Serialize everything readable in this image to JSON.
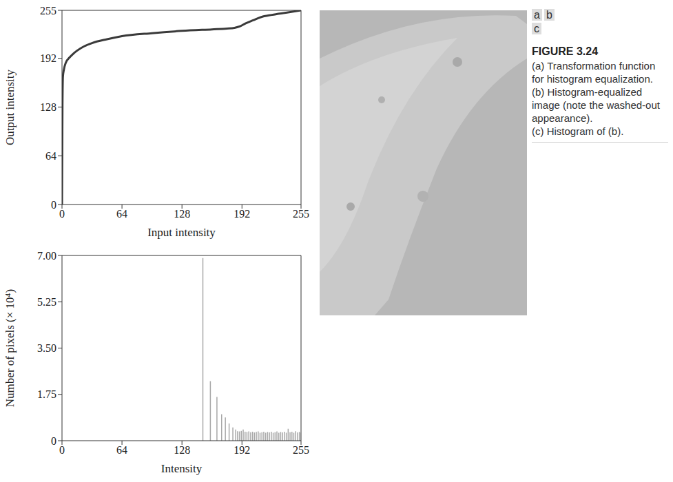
{
  "figure": {
    "panel_letters": [
      "a",
      "b",
      "c"
    ],
    "label": "FIGURE 3.24",
    "caption": [
      "(a) Transformation function for histogram equalization.",
      "(b) Histogram-equalized image (note the washed-out appearance).",
      "(c) Histogram of (b)."
    ]
  },
  "chart_data": [
    {
      "type": "line",
      "x_label": "Input intensity",
      "y_label": "Output intensity",
      "color": "#3a3a3a",
      "x": [
        0,
        0.5,
        1,
        2,
        4,
        8,
        12,
        16,
        24,
        32,
        48,
        64,
        96,
        128,
        160,
        176,
        184,
        190,
        196,
        204,
        212,
        224,
        240,
        255
      ],
      "values": [
        0,
        130,
        168,
        177,
        186,
        193,
        198,
        202,
        208,
        212,
        217,
        221,
        225,
        228,
        230,
        231,
        232,
        234,
        238,
        242,
        246,
        249,
        252,
        255
      ],
      "xlim": [
        0,
        255
      ],
      "xticks": [
        0,
        64,
        128,
        192,
        255
      ],
      "ylim": [
        0,
        255
      ],
      "yticks": [
        0,
        64,
        128,
        192,
        255
      ],
      "grid": false
    },
    {
      "type": "bar",
      "x_label": "Intensity",
      "y_label": "Number of pixels (× 10⁴)",
      "color": "#a8a8a8",
      "x": [
        150,
        158,
        165,
        170,
        174,
        178,
        182,
        185,
        187,
        189,
        191,
        193,
        195,
        197,
        199,
        201,
        203,
        205,
        207,
        209,
        211,
        213,
        215,
        217,
        219,
        221,
        223,
        225,
        227,
        229,
        231,
        233,
        235,
        237,
        239,
        241,
        243,
        245,
        247,
        249,
        251,
        253,
        255
      ],
      "values": [
        6.9,
        2.25,
        1.65,
        1.0,
        0.88,
        0.65,
        0.5,
        0.42,
        0.36,
        0.35,
        0.37,
        0.42,
        0.34,
        0.33,
        0.35,
        0.32,
        0.34,
        0.31,
        0.33,
        0.35,
        0.3,
        0.32,
        0.34,
        0.3,
        0.33,
        0.31,
        0.34,
        0.3,
        0.32,
        0.35,
        0.3,
        0.33,
        0.31,
        0.34,
        0.3,
        0.45,
        0.32,
        0.34,
        0.3,
        0.36,
        0.31,
        0.33,
        0.3
      ],
      "xlim": [
        0,
        255
      ],
      "xticks": [
        0,
        64,
        128,
        192,
        255
      ],
      "ylim": [
        0,
        7
      ],
      "yticks": [
        0,
        1.75,
        {
          "value": 3.5,
          "label": "3.50"
        },
        5.25,
        {
          "value": 7,
          "label": "7.00"
        }
      ],
      "grid": false
    }
  ]
}
